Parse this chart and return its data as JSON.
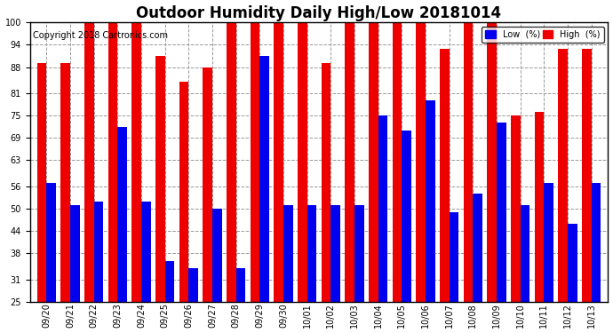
{
  "title": "Outdoor Humidity Daily High/Low 20181014",
  "copyright": "Copyright 2018 Cartronics.com",
  "legend_low": "Low  (%)",
  "legend_high": "High  (%)",
  "color_low": "#0000ee",
  "color_high": "#ee0000",
  "background_color": "#ffffff",
  "ylim": [
    25,
    100
  ],
  "yticks": [
    25,
    31,
    38,
    44,
    50,
    56,
    63,
    69,
    75,
    81,
    88,
    94,
    100
  ],
  "dates": [
    "09/20",
    "09/21",
    "09/22",
    "09/23",
    "09/24",
    "09/25",
    "09/26",
    "09/27",
    "09/28",
    "09/29",
    "09/30",
    "10/01",
    "10/02",
    "10/03",
    "10/04",
    "10/05",
    "10/06",
    "10/07",
    "10/08",
    "10/09",
    "10/10",
    "10/11",
    "10/12",
    "10/13"
  ],
  "high": [
    89,
    89,
    100,
    100,
    100,
    91,
    84,
    88,
    100,
    100,
    100,
    100,
    89,
    100,
    100,
    100,
    100,
    93,
    100,
    100,
    75,
    76,
    93,
    93
  ],
  "low": [
    57,
    51,
    52,
    72,
    52,
    36,
    34,
    50,
    34,
    91,
    51,
    51,
    51,
    51,
    75,
    71,
    79,
    49,
    54,
    73,
    51,
    57,
    46,
    57
  ],
  "bar_width": 0.4,
  "ymin": 25,
  "title_fontsize": 12,
  "tick_fontsize": 7,
  "copyright_fontsize": 7,
  "legend_fontsize": 7
}
